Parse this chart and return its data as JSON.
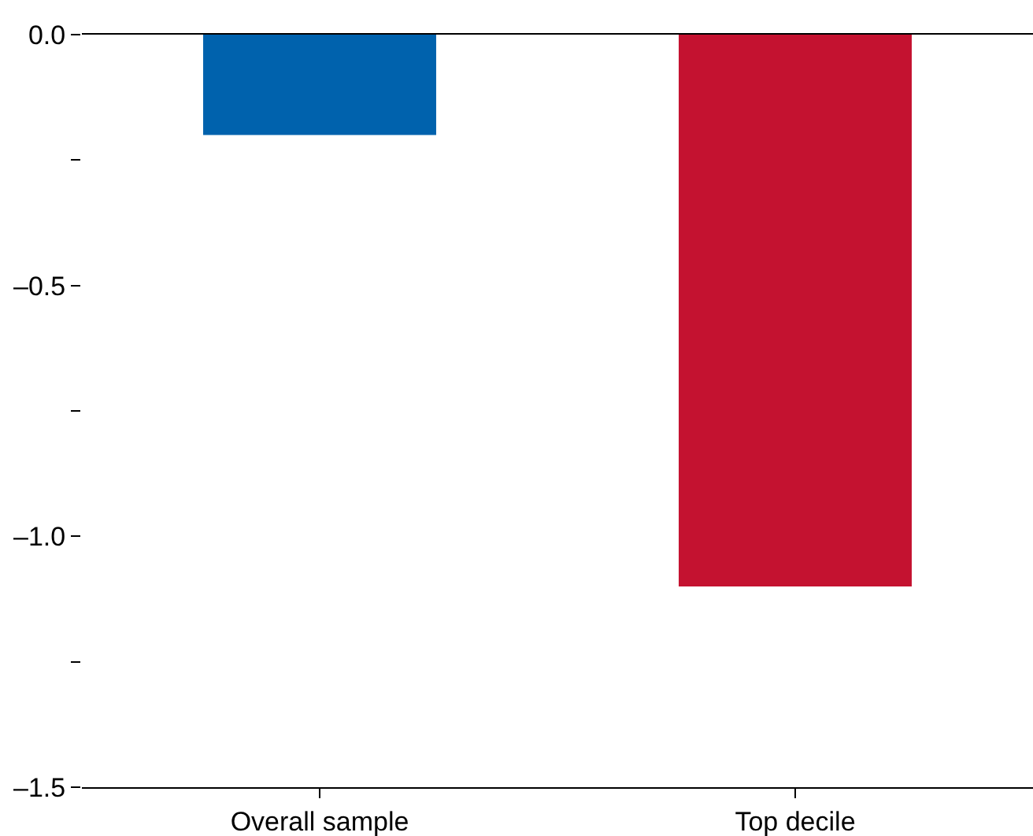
{
  "chart_data": {
    "type": "bar",
    "categories": [
      "Overall sample",
      "Top decile"
    ],
    "values": [
      -0.2,
      -1.1
    ],
    "colors": [
      "#0062ad",
      "#c41230"
    ],
    "ylim": [
      -1.5,
      0
    ],
    "yticks": [
      {
        "value": 0,
        "label": "0.0"
      },
      {
        "value": -0.25,
        "label": null
      },
      {
        "value": -0.5,
        "label": "–0.5"
      },
      {
        "value": -0.75,
        "label": null
      },
      {
        "value": -1.0,
        "label": "–1.0"
      },
      {
        "value": -1.25,
        "label": null
      },
      {
        "value": -1.5,
        "label": "–1.5"
      }
    ],
    "legend": false
  }
}
